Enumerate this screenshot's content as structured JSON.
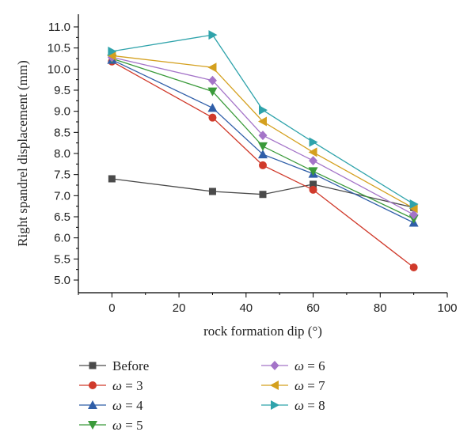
{
  "chart_data": {
    "type": "line",
    "title": "",
    "xlabel": "rock formation dip (°)",
    "ylabel": "Right spandrel displacement (mm)",
    "xlim": [
      -10,
      100
    ],
    "ylim": [
      4.7,
      11.3
    ],
    "xticks": [
      0,
      20,
      40,
      60,
      80,
      100
    ],
    "yticks": [
      5.0,
      5.5,
      6.0,
      6.5,
      7.0,
      7.5,
      8.0,
      8.5,
      9.0,
      9.5,
      10.0,
      10.5,
      11.0
    ],
    "ytick_labels": [
      "5.0",
      "5.5",
      "6.0",
      "6.5",
      "7.0",
      "7.5",
      "8.0",
      "8.5",
      "9.0",
      "9.5",
      "10.0",
      "10.5",
      "11.0"
    ],
    "x": [
      0,
      30,
      45,
      60,
      90
    ],
    "legend_placement": "bottom",
    "series": [
      {
        "name": "Before",
        "marker": "square",
        "color": "#4a4a4a",
        "values": [
          7.4,
          7.1,
          7.03,
          7.27,
          6.72
        ]
      },
      {
        "name": "ω = 3",
        "marker": "circle",
        "color": "#d03a2b",
        "values": [
          10.18,
          8.85,
          7.72,
          7.14,
          5.3
        ]
      },
      {
        "name": "ω = 4",
        "marker": "triangle-up",
        "color": "#2f5ea8",
        "values": [
          10.22,
          9.08,
          7.98,
          7.52,
          6.36
        ]
      },
      {
        "name": "ω = 5",
        "marker": "triangle-down",
        "color": "#3a9a3a",
        "values": [
          10.25,
          9.47,
          8.17,
          7.58,
          6.45
        ]
      },
      {
        "name": "ω = 6",
        "marker": "diamond",
        "color": "#a474c8",
        "values": [
          10.28,
          9.73,
          8.43,
          7.83,
          6.55
        ]
      },
      {
        "name": "ω = 7",
        "marker": "triangle-left",
        "color": "#d4a01e",
        "values": [
          10.32,
          10.04,
          8.76,
          8.03,
          6.7
        ]
      },
      {
        "name": "ω = 8",
        "marker": "triangle-right",
        "color": "#2fa3ab",
        "values": [
          10.42,
          10.81,
          9.03,
          8.27,
          6.8
        ]
      }
    ]
  }
}
